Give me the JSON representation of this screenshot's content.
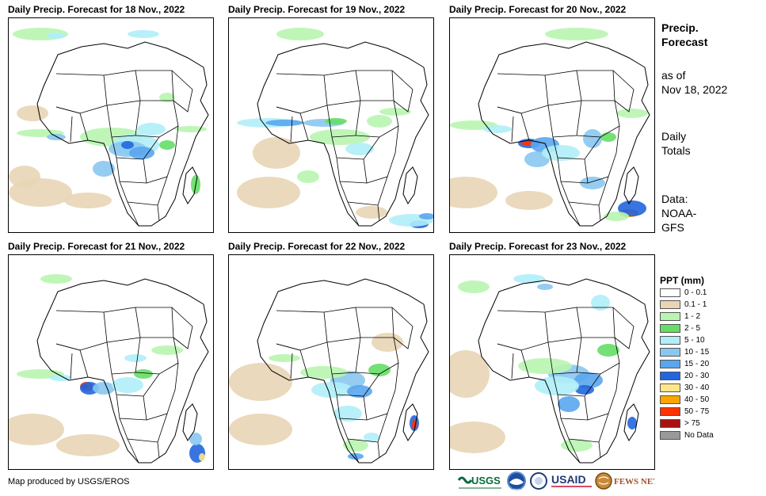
{
  "panels": [
    {
      "title": "Daily Precip. Forecast for 18 Nov., 2022"
    },
    {
      "title": "Daily Precip. Forecast for 19 Nov., 2022"
    },
    {
      "title": "Daily Precip. Forecast for 20 Nov., 2022"
    },
    {
      "title": "Daily Precip. Forecast for 21 Nov., 2022"
    },
    {
      "title": "Daily Precip. Forecast for 22 Nov., 2022"
    },
    {
      "title": "Daily Precip. Forecast for 23 Nov., 2022"
    }
  ],
  "sidebar": {
    "heading_line1": "Precip.",
    "heading_line2": "Forecast",
    "asof_line1": "as of",
    "asof_line2": "Nov 18, 2022",
    "totals_line1": "Daily",
    "totals_line2": "Totals",
    "data_line1": "Data:",
    "data_line2": "NOAA-",
    "data_line3": "GFS"
  },
  "legend": {
    "title": "PPT (mm)",
    "items": [
      {
        "label": "0 - 0.1",
        "color": "#ffffff"
      },
      {
        "label": "0.1 - 1",
        "color": "#e8d5b5"
      },
      {
        "label": "1 - 2",
        "color": "#b8f5b0"
      },
      {
        "label": "2 - 5",
        "color": "#66dd66"
      },
      {
        "label": "5 - 10",
        "color": "#b0eef8"
      },
      {
        "label": "10 - 15",
        "color": "#88c8f0"
      },
      {
        "label": "15 - 20",
        "color": "#5aa6ee"
      },
      {
        "label": "20 - 30",
        "color": "#2266dd"
      },
      {
        "label": "30 - 40",
        "color": "#ffe68a"
      },
      {
        "label": "40 - 50",
        "color": "#ffa500"
      },
      {
        "label": "50 - 75",
        "color": "#ff3300"
      },
      {
        "label": "> 75",
        "color": "#aa1111"
      },
      {
        "label": "No Data",
        "color": "#999999"
      }
    ]
  },
  "footer": {
    "credit": "Map produced by USGS/EROS",
    "logos": [
      "USGS",
      "NOAA",
      "USAID",
      "FEWS NET"
    ]
  }
}
